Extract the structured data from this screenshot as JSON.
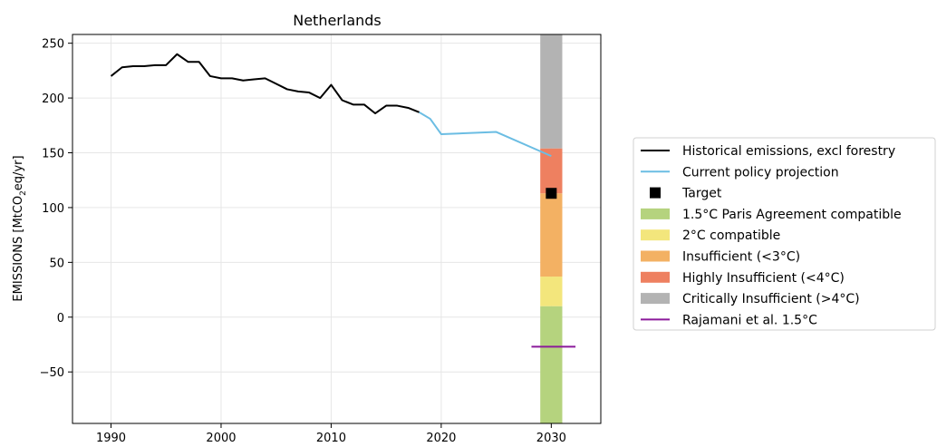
{
  "chart_data": {
    "type": "line",
    "title": "Netherlands",
    "xlabel": "",
    "ylabel_prefix": "EMISSIONS [MtCO",
    "ylabel_sub": "2",
    "ylabel_suffix": "eq/yr]",
    "xlim": [
      1986.5,
      2034.5
    ],
    "ylim": [
      -97,
      258
    ],
    "xticks": [
      1990,
      2000,
      2010,
      2020,
      2030
    ],
    "yticks": [
      -50,
      0,
      50,
      100,
      150,
      200,
      250
    ],
    "ytick_labels": [
      "−50",
      "0",
      "50",
      "100",
      "150",
      "200",
      "250"
    ],
    "grid": true,
    "legend_position": "outside-right",
    "series": [
      {
        "name": "Historical emissions, excl forestry",
        "kind": "line",
        "color": "#000000",
        "x": [
          1990,
          1991,
          1992,
          1993,
          1994,
          1995,
          1996,
          1997,
          1998,
          1999,
          2000,
          2001,
          2002,
          2003,
          2004,
          2005,
          2006,
          2007,
          2008,
          2009,
          2010,
          2011,
          2012,
          2013,
          2014,
          2015,
          2016,
          2017,
          2018
        ],
        "y": [
          220,
          228,
          229,
          229,
          230,
          230,
          240,
          233,
          233,
          220,
          218,
          218,
          216,
          217,
          218,
          213,
          208,
          206,
          205,
          200,
          212,
          198,
          194,
          194,
          186,
          193,
          193,
          191,
          187
        ]
      },
      {
        "name": "Current policy projection",
        "kind": "line",
        "color": "#6bbde3",
        "x": [
          2018,
          2019,
          2020,
          2025,
          2030
        ],
        "y": [
          187,
          181,
          167,
          169,
          147
        ]
      },
      {
        "name": "Target",
        "kind": "marker",
        "color": "#000000",
        "x": [
          2030
        ],
        "y": [
          113
        ]
      },
      {
        "name": "1.5°C Paris Agreement compatible",
        "kind": "band",
        "color": "#b5d37e",
        "x_range": [
          2029,
          2031
        ],
        "y_range": [
          -97,
          10
        ]
      },
      {
        "name": "2°C compatible",
        "kind": "band",
        "color": "#f3e67c",
        "x_range": [
          2029,
          2031
        ],
        "y_range": [
          10,
          37
        ]
      },
      {
        "name": "Insufficient (<3°C)",
        "kind": "band",
        "color": "#f3b163",
        "x_range": [
          2029,
          2031
        ],
        "y_range": [
          37,
          113
        ]
      },
      {
        "name": "Highly Insufficient (<4°C)",
        "kind": "band",
        "color": "#ee8060",
        "x_range": [
          2029,
          2031
        ],
        "y_range": [
          113,
          154
        ]
      },
      {
        "name": "Critically Insufficient (>4°C)",
        "kind": "band",
        "color": "#b3b3b3",
        "x_range": [
          2029,
          2031
        ],
        "y_range": [
          154,
          258
        ]
      },
      {
        "name": "Rajamani et al. 1.5°C",
        "kind": "hline",
        "color": "#8b1a9b",
        "x_range": [
          2028.2,
          2032.2
        ],
        "y": -27
      }
    ]
  }
}
